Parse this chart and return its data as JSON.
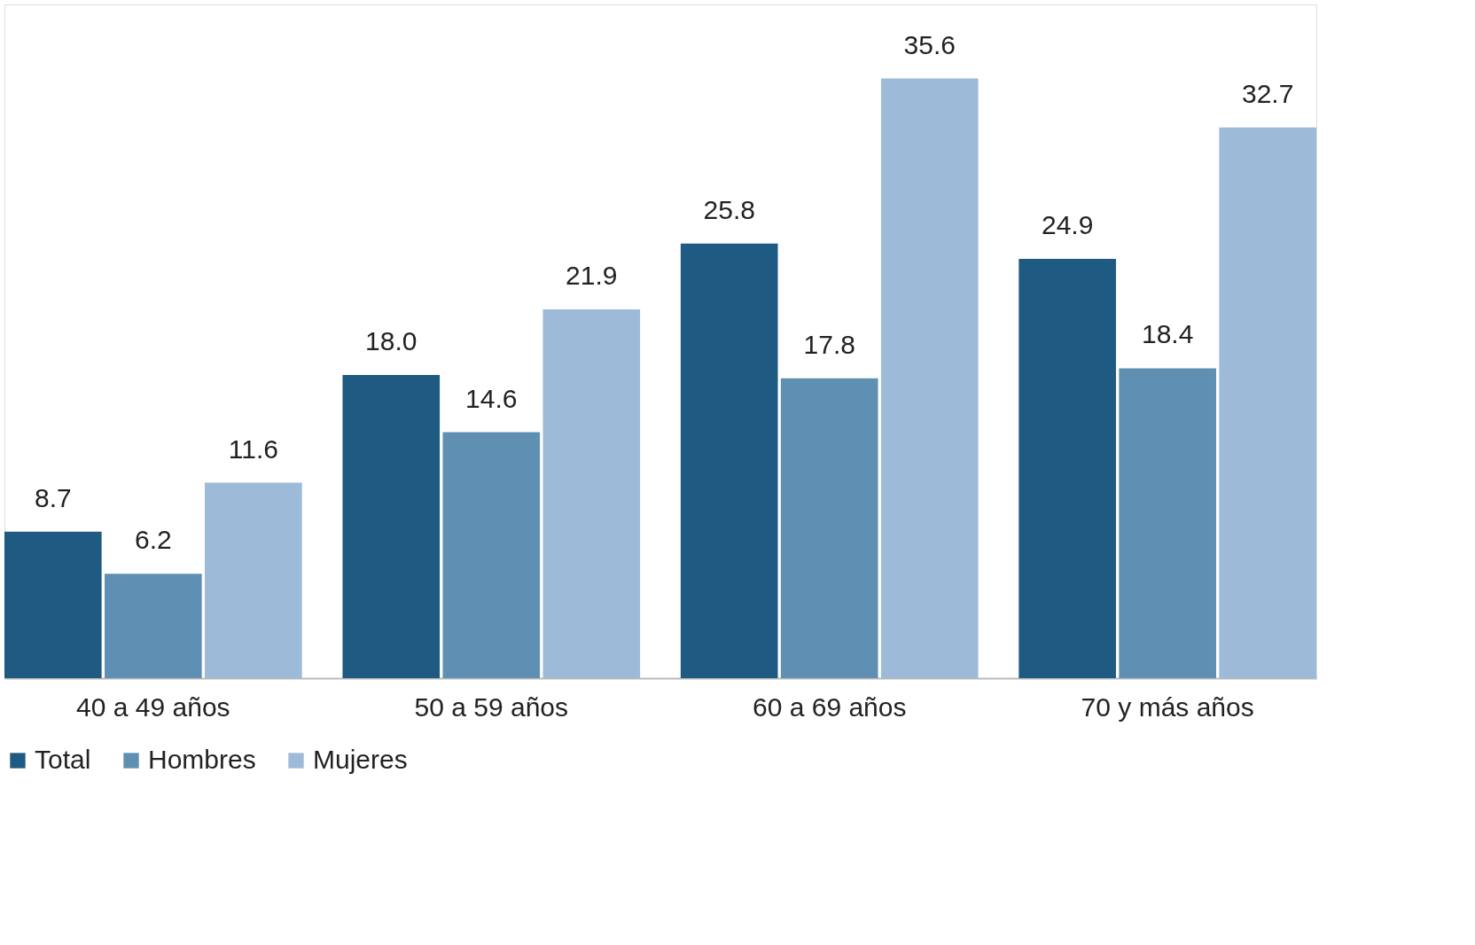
{
  "chart_data": {
    "type": "bar",
    "categories": [
      "40 a 49 años",
      "50 a 59 años",
      "60 a 69 años",
      "70 y más años"
    ],
    "series": [
      {
        "name": "Total",
        "color": "#1f5a82",
        "values": [
          8.7,
          18.0,
          25.8,
          24.9
        ],
        "value_labels": [
          "8.7",
          "18.0",
          "25.8",
          "24.9"
        ]
      },
      {
        "name": "Hombres",
        "color": "#5f8fb3",
        "values": [
          6.2,
          14.6,
          17.8,
          18.4
        ],
        "value_labels": [
          "6.2",
          "14.6",
          "17.8",
          "18.4"
        ]
      },
      {
        "name": "Mujeres",
        "color": "#9dbad8",
        "values": [
          11.6,
          21.9,
          35.6,
          32.7
        ],
        "value_labels": [
          "11.6",
          "21.9",
          "35.6",
          "32.7"
        ]
      }
    ],
    "legend": "bottom left",
    "grid": false,
    "tick_labels": "x"
  }
}
